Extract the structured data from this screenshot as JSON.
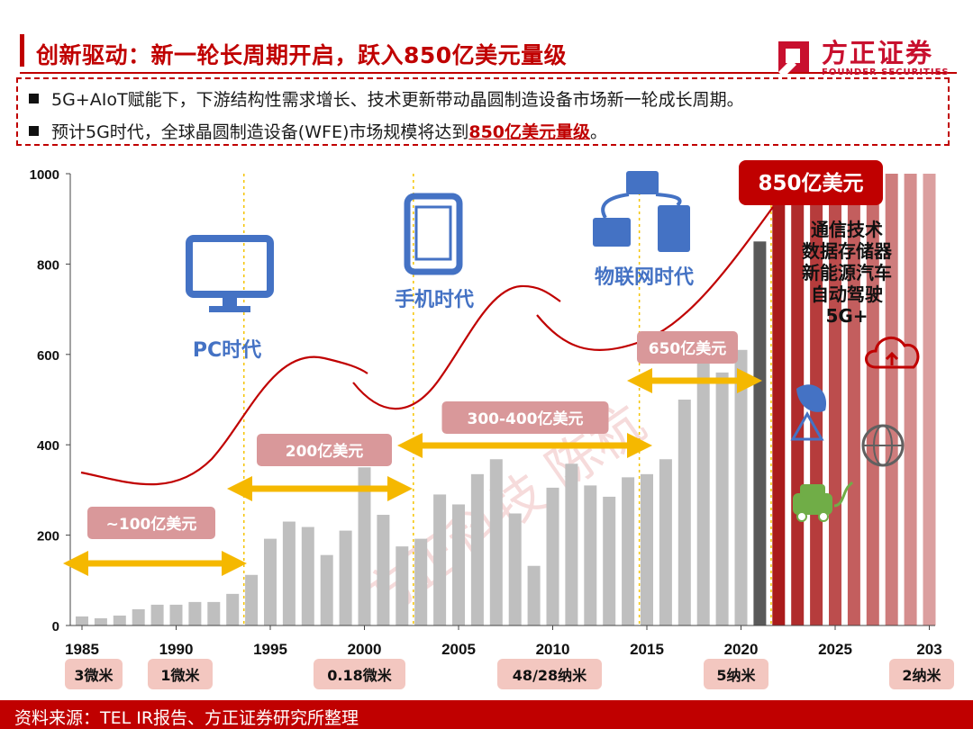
{
  "header": {
    "title": "创新驱动：新一轮长周期开启，跃入850亿美元量级",
    "logo_cn": "方正证券",
    "logo_en": "FOUNDER SECURITIES"
  },
  "bullets": [
    {
      "text": "5G+AIoT赋能下，下游结构性需求增长、技术更新带动晶圆制造设备市场新一轮成长周期。"
    },
    {
      "prefix": "预计5G时代，全球晶圆制造设备(WFE)市场规模将达到",
      "highlight": "850亿美元量级",
      "suffix": "。"
    }
  ],
  "chart_data": {
    "type": "bar",
    "ylim": [
      0,
      1000
    ],
    "yticks": [
      0,
      200,
      400,
      600,
      800,
      1000
    ],
    "xtick_labels": [
      "1985",
      "1990",
      "1995",
      "2000",
      "2005",
      "2010",
      "2015",
      "2020",
      "2025",
      "203"
    ],
    "categories": [
      "1985",
      "1986",
      "1987",
      "1988",
      "1989",
      "1990",
      "1991",
      "1992",
      "1993",
      "1994",
      "1995",
      "1996",
      "1997",
      "1998",
      "1999",
      "2000",
      "2001",
      "2002",
      "2003",
      "2004",
      "2005",
      "2006",
      "2007",
      "2008",
      "2009",
      "2010",
      "2011",
      "2012",
      "2013",
      "2014",
      "2015",
      "2016",
      "2017",
      "2018",
      "2019",
      "2020",
      "2021"
    ],
    "values": [
      20,
      16,
      22,
      36,
      46,
      46,
      52,
      52,
      70,
      112,
      192,
      230,
      218,
      156,
      210,
      350,
      245,
      175,
      192,
      290,
      268,
      335,
      368,
      248,
      132,
      305,
      358,
      310,
      285,
      328,
      335,
      368,
      500,
      590,
      560,
      610,
      850
    ],
    "forecast_years": [
      "2022",
      "2023",
      "2024",
      "2025",
      "2026",
      "2027",
      "2028",
      "2029",
      "2030"
    ],
    "eras": [
      {
        "label": "PC时代",
        "icon": "monitor-icon"
      },
      {
        "label": "手机时代",
        "icon": "smartphone-icon"
      },
      {
        "label": "物联网时代",
        "icon": "iot-network-icon"
      }
    ],
    "ranges": [
      {
        "label": "~100亿美元"
      },
      {
        "label": "200亿美元"
      },
      {
        "label": "300-400亿美元"
      },
      {
        "label": "650亿美元"
      }
    ],
    "callout": "850亿美元",
    "drivers": [
      "通信技术",
      "数据存储器",
      "新能源汽车",
      "自动驾驶",
      "5G+"
    ],
    "nodes": [
      "3微米",
      "1微米",
      "0.18微米",
      "48/28纳米",
      "5纳米",
      "2纳米"
    ],
    "watermark": "方正科技 陈杭",
    "colors": {
      "bar": "#bfbfbf",
      "bar_highlight": "#595959",
      "forecast": "#a50f0f",
      "arrow": "#f5b800",
      "pill": "#d9989a",
      "curve": "#c00000",
      "icon_blue": "#4472c4",
      "icon_green": "#70ad47",
      "icon_red": "#c00000"
    }
  },
  "footer": {
    "text": "资料来源：TEL IR报告、方正证券研究所整理"
  }
}
